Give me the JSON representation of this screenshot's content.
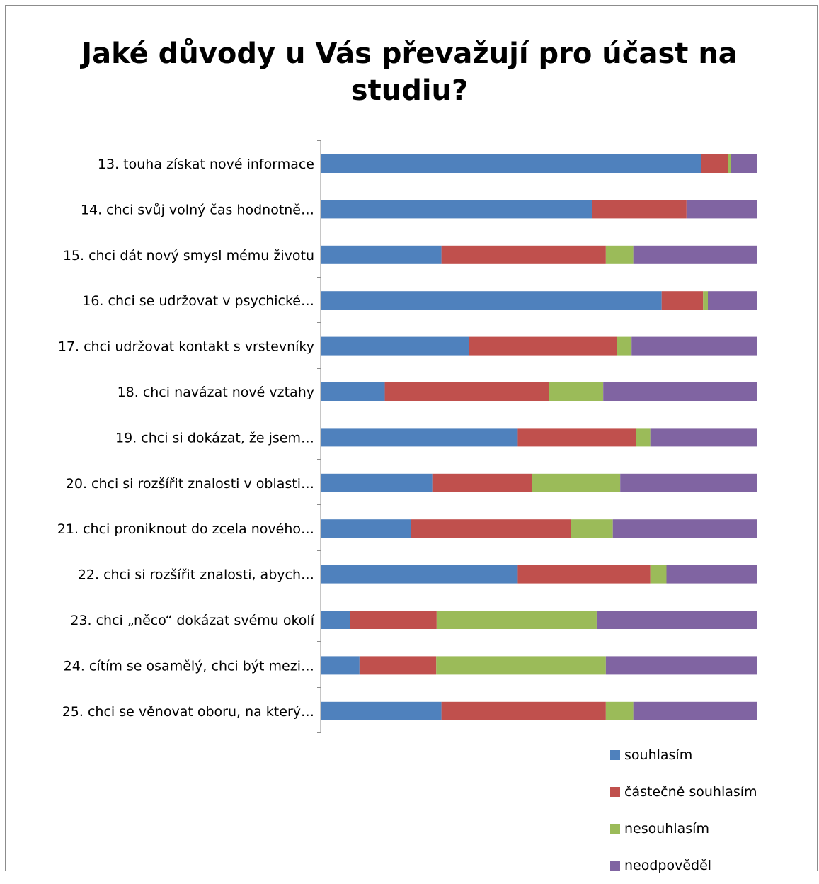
{
  "chart_data": {
    "type": "bar",
    "orientation": "horizontal",
    "stacked": "percent",
    "title": "Jaké důvody u Vás převažují pro účast na studiu?",
    "title_lines": [
      "Jaké důvody u Vás převažují pro účast na",
      "studiu?"
    ],
    "categories": [
      "13. touha získat nové informace",
      "14. chci svůj volný čas hodnotně…",
      "15. chci dát nový smysl mému životu",
      "16. chci se udržovat v psychické…",
      "17. chci udržovat kontakt s vrstevníky",
      "18. chci navázat nové vztahy",
      "19. chci si dokázat, že jsem…",
      "20. chci si rozšířit znalosti v oblasti…",
      "21. chci proniknout do zcela nového…",
      "22. chci si rozšířit znalosti, abych…",
      "23. chci „něco“ dokázat svému okolí",
      "24. cítím se osamělý, chci být mezi…",
      "25. chci se věnovat oboru, na který…"
    ],
    "series": [
      {
        "name": "souhlasím",
        "color": "#4f81bd",
        "values": [
          87.2,
          62.2,
          27.7,
          78.2,
          34.0,
          14.7,
          45.2,
          25.6,
          20.7,
          45.2,
          6.8,
          8.9,
          27.7
        ]
      },
      {
        "name": "částečně souhlasím",
        "color": "#c0504d",
        "values": [
          6.3,
          21.7,
          37.7,
          9.5,
          34.0,
          37.7,
          27.2,
          22.9,
          36.7,
          30.4,
          19.8,
          17.6,
          37.7
        ]
      },
      {
        "name": "nesouhlasím",
        "color": "#9bbb59",
        "values": [
          0.6,
          0.0,
          6.3,
          1.1,
          3.3,
          12.4,
          3.2,
          20.2,
          9.6,
          3.7,
          36.7,
          38.9,
          6.3
        ]
      },
      {
        "name": "neodpověděl",
        "color": "#8064a2",
        "values": [
          5.9,
          16.1,
          28.3,
          11.2,
          28.7,
          35.2,
          24.4,
          31.3,
          33.0,
          20.7,
          36.7,
          34.6,
          28.3
        ]
      }
    ],
    "xlim": [
      0,
      100
    ],
    "legend_position": "bottom-right",
    "grid": false
  }
}
